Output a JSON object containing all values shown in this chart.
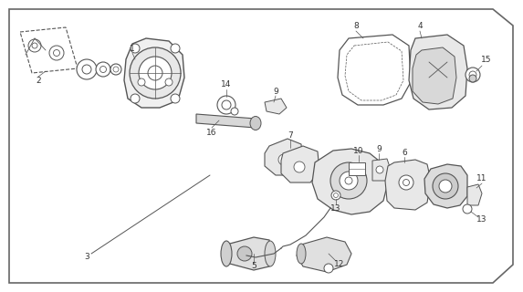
{
  "background_color": "#ffffff",
  "border_color": "#888888",
  "line_color": "#555555",
  "text_color": "#333333",
  "figure_width": 5.73,
  "figure_height": 3.2,
  "dpi": 100
}
